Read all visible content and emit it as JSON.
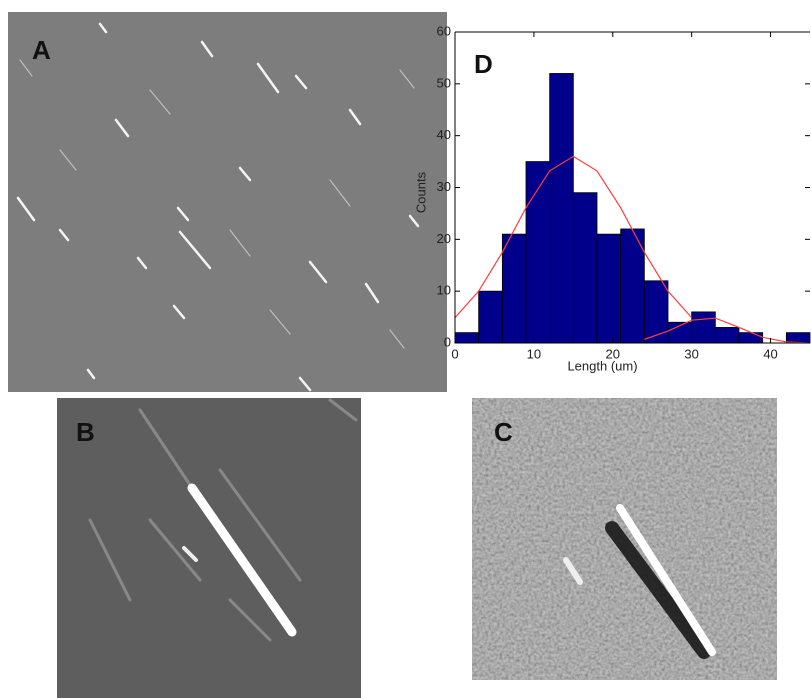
{
  "panel_labels": [
    "A",
    "B",
    "C"
  ],
  "chart_data": {
    "type": "histogram",
    "title": "D",
    "x_label": "Length (um)",
    "y_label": "Counts",
    "bins": [
      0,
      3,
      6,
      9,
      12,
      15,
      18,
      21,
      24,
      27,
      30,
      33,
      36,
      39,
      42,
      45
    ],
    "values": [
      2,
      10,
      21,
      35,
      52,
      29,
      21,
      22,
      12,
      4,
      6,
      3,
      2,
      0,
      2
    ],
    "color": "#00008b",
    "fits": [
      {
        "color": "#ff3b3b",
        "x": [
          0,
          3,
          6,
          9,
          12,
          15,
          18,
          21,
          24,
          27,
          30
        ],
        "values": [
          4.9,
          10.0,
          17.5,
          26.1,
          33.2,
          36,
          33.2,
          26.1,
          17.5,
          10.0,
          4.9
        ]
      },
      {
        "color": "#ff3b3b",
        "x": [
          24,
          27,
          30,
          33,
          36,
          39,
          42,
          45
        ],
        "values": [
          0.7,
          2.3,
          4.4,
          4.8,
          3.0,
          1.1,
          0.2,
          0.0
        ]
      }
    ],
    "xlim": [
      0,
      45
    ],
    "ylim": [
      0,
      60
    ],
    "xticks": [
      0,
      10,
      20,
      30,
      40
    ],
    "yticks": [
      0,
      10,
      20,
      30,
      40,
      50,
      60
    ]
  }
}
